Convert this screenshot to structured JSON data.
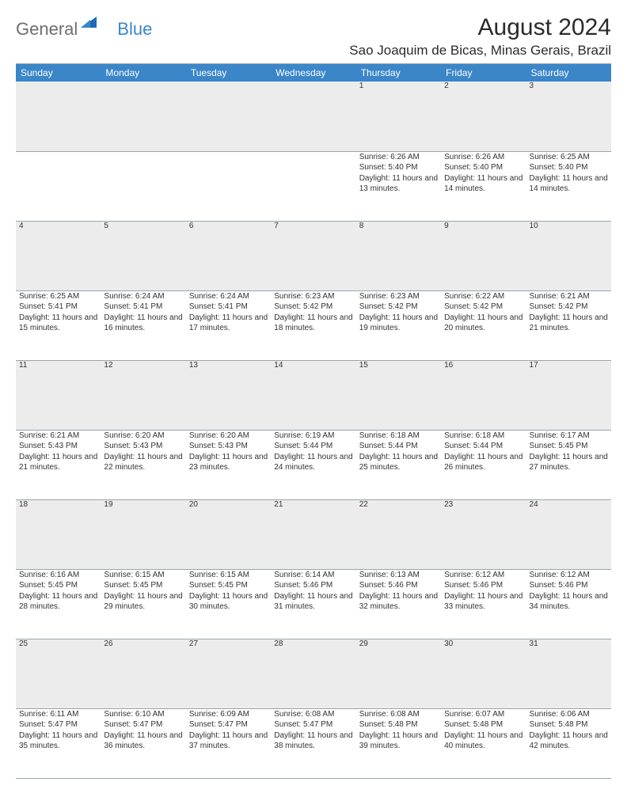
{
  "logo": {
    "part1": "General",
    "part2": "Blue"
  },
  "title": "August 2024",
  "location": "Sao Joaquim de Bicas, Minas Gerais, Brazil",
  "colors": {
    "header_bg": "#3a86c8",
    "header_text": "#ffffff",
    "daynum_bg": "#ececec",
    "border": "#9aa5ad",
    "logo_gray": "#6d6e71",
    "logo_blue": "#3a86c8"
  },
  "day_headers": [
    "Sunday",
    "Monday",
    "Tuesday",
    "Wednesday",
    "Thursday",
    "Friday",
    "Saturday"
  ],
  "weeks": [
    {
      "nums": [
        "",
        "",
        "",
        "",
        "1",
        "2",
        "3"
      ],
      "cells": [
        null,
        null,
        null,
        null,
        {
          "sunrise": "6:26 AM",
          "sunset": "5:40 PM",
          "daylight": "11 hours and 13 minutes."
        },
        {
          "sunrise": "6:26 AM",
          "sunset": "5:40 PM",
          "daylight": "11 hours and 14 minutes."
        },
        {
          "sunrise": "6:25 AM",
          "sunset": "5:40 PM",
          "daylight": "11 hours and 14 minutes."
        }
      ]
    },
    {
      "nums": [
        "4",
        "5",
        "6",
        "7",
        "8",
        "9",
        "10"
      ],
      "cells": [
        {
          "sunrise": "6:25 AM",
          "sunset": "5:41 PM",
          "daylight": "11 hours and 15 minutes."
        },
        {
          "sunrise": "6:24 AM",
          "sunset": "5:41 PM",
          "daylight": "11 hours and 16 minutes."
        },
        {
          "sunrise": "6:24 AM",
          "sunset": "5:41 PM",
          "daylight": "11 hours and 17 minutes."
        },
        {
          "sunrise": "6:23 AM",
          "sunset": "5:42 PM",
          "daylight": "11 hours and 18 minutes."
        },
        {
          "sunrise": "6:23 AM",
          "sunset": "5:42 PM",
          "daylight": "11 hours and 19 minutes."
        },
        {
          "sunrise": "6:22 AM",
          "sunset": "5:42 PM",
          "daylight": "11 hours and 20 minutes."
        },
        {
          "sunrise": "6:21 AM",
          "sunset": "5:42 PM",
          "daylight": "11 hours and 21 minutes."
        }
      ]
    },
    {
      "nums": [
        "11",
        "12",
        "13",
        "14",
        "15",
        "16",
        "17"
      ],
      "cells": [
        {
          "sunrise": "6:21 AM",
          "sunset": "5:43 PM",
          "daylight": "11 hours and 21 minutes."
        },
        {
          "sunrise": "6:20 AM",
          "sunset": "5:43 PM",
          "daylight": "11 hours and 22 minutes."
        },
        {
          "sunrise": "6:20 AM",
          "sunset": "5:43 PM",
          "daylight": "11 hours and 23 minutes."
        },
        {
          "sunrise": "6:19 AM",
          "sunset": "5:44 PM",
          "daylight": "11 hours and 24 minutes."
        },
        {
          "sunrise": "6:18 AM",
          "sunset": "5:44 PM",
          "daylight": "11 hours and 25 minutes."
        },
        {
          "sunrise": "6:18 AM",
          "sunset": "5:44 PM",
          "daylight": "11 hours and 26 minutes."
        },
        {
          "sunrise": "6:17 AM",
          "sunset": "5:45 PM",
          "daylight": "11 hours and 27 minutes."
        }
      ]
    },
    {
      "nums": [
        "18",
        "19",
        "20",
        "21",
        "22",
        "23",
        "24"
      ],
      "cells": [
        {
          "sunrise": "6:16 AM",
          "sunset": "5:45 PM",
          "daylight": "11 hours and 28 minutes."
        },
        {
          "sunrise": "6:15 AM",
          "sunset": "5:45 PM",
          "daylight": "11 hours and 29 minutes."
        },
        {
          "sunrise": "6:15 AM",
          "sunset": "5:45 PM",
          "daylight": "11 hours and 30 minutes."
        },
        {
          "sunrise": "6:14 AM",
          "sunset": "5:46 PM",
          "daylight": "11 hours and 31 minutes."
        },
        {
          "sunrise": "6:13 AM",
          "sunset": "5:46 PM",
          "daylight": "11 hours and 32 minutes."
        },
        {
          "sunrise": "6:12 AM",
          "sunset": "5:46 PM",
          "daylight": "11 hours and 33 minutes."
        },
        {
          "sunrise": "6:12 AM",
          "sunset": "5:46 PM",
          "daylight": "11 hours and 34 minutes."
        }
      ]
    },
    {
      "nums": [
        "25",
        "26",
        "27",
        "28",
        "29",
        "30",
        "31"
      ],
      "cells": [
        {
          "sunrise": "6:11 AM",
          "sunset": "5:47 PM",
          "daylight": "11 hours and 35 minutes."
        },
        {
          "sunrise": "6:10 AM",
          "sunset": "5:47 PM",
          "daylight": "11 hours and 36 minutes."
        },
        {
          "sunrise": "6:09 AM",
          "sunset": "5:47 PM",
          "daylight": "11 hours and 37 minutes."
        },
        {
          "sunrise": "6:08 AM",
          "sunset": "5:47 PM",
          "daylight": "11 hours and 38 minutes."
        },
        {
          "sunrise": "6:08 AM",
          "sunset": "5:48 PM",
          "daylight": "11 hours and 39 minutes."
        },
        {
          "sunrise": "6:07 AM",
          "sunset": "5:48 PM",
          "daylight": "11 hours and 40 minutes."
        },
        {
          "sunrise": "6:06 AM",
          "sunset": "5:48 PM",
          "daylight": "11 hours and 42 minutes."
        }
      ]
    }
  ],
  "labels": {
    "sunrise": "Sunrise: ",
    "sunset": "Sunset: ",
    "daylight": "Daylight: "
  }
}
